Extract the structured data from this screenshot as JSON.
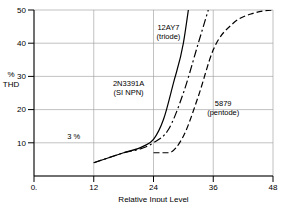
{
  "chart_data": {
    "type": "line",
    "xlabel": "Relative Input Level",
    "ylabel": "% THD",
    "xlim": [
      0,
      48
    ],
    "xticks": [
      {
        "value": 0,
        "label": "0."
      },
      12,
      24,
      36,
      48
    ],
    "ylim": [
      0,
      50
    ],
    "yticks": [
      10,
      20,
      30,
      40,
      50
    ],
    "grid": true,
    "series": [
      {
        "name": "12AY7",
        "color": "#000000",
        "line_style": "solid",
        "x": [
          12,
          15,
          18,
          22,
          24,
          26,
          28,
          30,
          31
        ],
        "values": [
          4,
          5.5,
          7,
          9,
          11,
          17,
          28,
          40,
          50
        ]
      },
      {
        "name": "2N3391A",
        "color": "#000000",
        "line_style": "dashdot",
        "x": [
          12,
          15,
          18,
          22,
          24,
          27,
          30,
          33,
          35
        ],
        "values": [
          4,
          5.5,
          7,
          8.5,
          10,
          14,
          25,
          40,
          50
        ]
      },
      {
        "name": "5879",
        "color": "#000000",
        "line_style": "dashed",
        "x": [
          24,
          27,
          30,
          33,
          36,
          40,
          44,
          48
        ],
        "values": [
          7,
          7,
          12,
          24,
          38,
          46,
          49,
          50
        ]
      }
    ],
    "annotations": [
      {
        "text": [
          "12AY7",
          "(triode)"
        ],
        "x": 27,
        "y": 44
      },
      {
        "text": [
          "2N3391A",
          "(SI NPN)"
        ],
        "x": 19,
        "y": 27
      },
      {
        "text": [
          "5879",
          "(pentode)"
        ],
        "x": 38,
        "y": 21
      },
      {
        "text": [
          "3 %"
        ],
        "x": 8,
        "y": 11
      }
    ]
  }
}
